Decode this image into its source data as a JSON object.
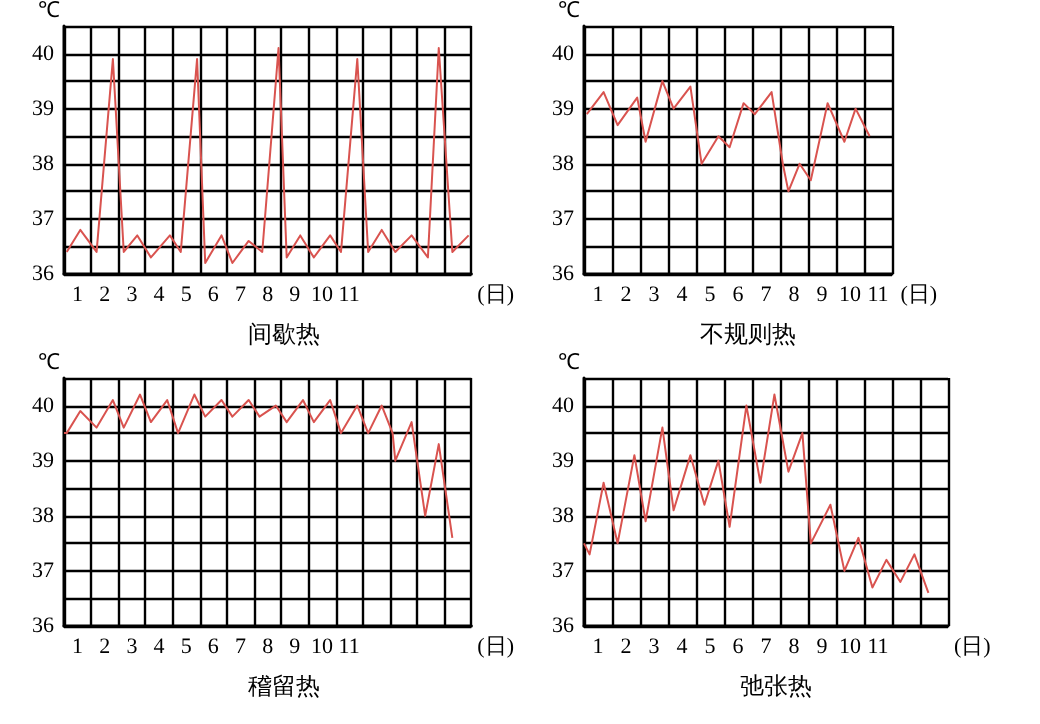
{
  "chart_data": [
    {
      "type": "line",
      "title": "间歇热",
      "xlabel": "(日)",
      "ylabel": "℃",
      "color": "#d9534f",
      "marker": "none",
      "grid": true,
      "xlim": [
        0,
        15
      ],
      "ylim": [
        36,
        40.5
      ],
      "xticks": [
        {
          "value": 0,
          "label": null
        },
        {
          "value": 0.5,
          "label": "1"
        },
        {
          "value": 1,
          "label": null
        },
        {
          "value": 1.5,
          "label": "2"
        },
        {
          "value": 2,
          "label": null
        },
        {
          "value": 2.5,
          "label": "3"
        },
        {
          "value": 3,
          "label": null
        },
        {
          "value": 3.5,
          "label": "4"
        },
        {
          "value": 4,
          "label": null
        },
        {
          "value": 4.5,
          "label": "5"
        },
        {
          "value": 5,
          "label": null
        },
        {
          "value": 5.5,
          "label": "6"
        },
        {
          "value": 6,
          "label": null
        },
        {
          "value": 6.5,
          "label": "7"
        },
        {
          "value": 7,
          "label": null
        },
        {
          "value": 7.5,
          "label": "8"
        },
        {
          "value": 8,
          "label": null
        },
        {
          "value": 8.5,
          "label": "9"
        },
        {
          "value": 9,
          "label": null
        },
        {
          "value": 9.5,
          "label": "10"
        },
        {
          "value": 10,
          "label": null
        },
        {
          "value": 10.5,
          "label": "11"
        },
        {
          "value": 11,
          "label": null
        },
        {
          "value": 12,
          "label": null
        },
        {
          "value": 13,
          "label": null
        },
        {
          "value": 14,
          "label": null
        },
        {
          "value": 15,
          "label": null
        }
      ],
      "yticks": [
        36,
        {
          "value": 36.5,
          "label": null
        },
        37,
        {
          "value": 37.5,
          "label": null
        },
        38,
        {
          "value": 38.5,
          "label": null
        },
        39,
        {
          "value": 39.5,
          "label": null
        },
        40,
        {
          "value": 40.5,
          "label": null
        }
      ],
      "x": [
        0.1,
        0.6,
        1.2,
        1.8,
        2.2,
        2.7,
        3.2,
        3.9,
        4.3,
        4.9,
        5.2,
        5.8,
        6.2,
        6.8,
        7.3,
        7.9,
        8.2,
        8.7,
        9.2,
        9.8,
        10.2,
        10.8,
        11.2,
        11.7,
        12.2,
        12.8,
        13.4,
        13.8,
        14.3,
        14.9
      ],
      "values": [
        36.4,
        36.8,
        36.4,
        39.9,
        36.4,
        36.7,
        36.3,
        36.7,
        36.4,
        39.9,
        36.2,
        36.7,
        36.2,
        36.6,
        36.4,
        40.1,
        36.3,
        36.7,
        36.3,
        36.7,
        36.4,
        39.9,
        36.4,
        36.8,
        36.4,
        36.7,
        36.3,
        40.1,
        36.4,
        36.7
      ]
    },
    {
      "type": "line",
      "title": "不规则热",
      "xlabel": "(日)",
      "ylabel": "℃",
      "color": "#d9534f",
      "marker": "none",
      "grid": true,
      "xlim": [
        0,
        11
      ],
      "ylim": [
        36,
        40.5
      ],
      "xticks": [
        {
          "value": 0,
          "label": null
        },
        {
          "value": 0.5,
          "label": "1"
        },
        {
          "value": 1,
          "label": null
        },
        {
          "value": 1.5,
          "label": "2"
        },
        {
          "value": 2,
          "label": null
        },
        {
          "value": 2.5,
          "label": "3"
        },
        {
          "value": 3,
          "label": null
        },
        {
          "value": 3.5,
          "label": "4"
        },
        {
          "value": 4,
          "label": null
        },
        {
          "value": 4.5,
          "label": "5"
        },
        {
          "value": 5,
          "label": null
        },
        {
          "value": 5.5,
          "label": "6"
        },
        {
          "value": 6,
          "label": null
        },
        {
          "value": 6.5,
          "label": "7"
        },
        {
          "value": 7,
          "label": null
        },
        {
          "value": 7.5,
          "label": "8"
        },
        {
          "value": 8,
          "label": null
        },
        {
          "value": 8.5,
          "label": "9"
        },
        {
          "value": 9,
          "label": null
        },
        {
          "value": 9.5,
          "label": "10"
        },
        {
          "value": 10,
          "label": null
        },
        {
          "value": 10.5,
          "label": "11"
        },
        {
          "value": 11,
          "label": null
        }
      ],
      "yticks": [
        36,
        {
          "value": 36.5,
          "label": null
        },
        37,
        {
          "value": 37.5,
          "label": null
        },
        38,
        {
          "value": 38.5,
          "label": null
        },
        39,
        {
          "value": 39.5,
          "label": null
        },
        40,
        {
          "value": 40.5,
          "label": null
        }
      ],
      "x": [
        0.1,
        0.7,
        1.2,
        1.9,
        2.2,
        2.8,
        3.2,
        3.8,
        4.2,
        4.8,
        5.2,
        5.7,
        6.1,
        6.7,
        7.1,
        7.3,
        7.7,
        8.1,
        8.7,
        9.3,
        9.7,
        10.2
      ],
      "values": [
        38.9,
        39.3,
        38.7,
        39.2,
        38.4,
        39.5,
        39.0,
        39.4,
        38.0,
        38.5,
        38.3,
        39.1,
        38.9,
        39.3,
        38.0,
        37.5,
        38.0,
        37.7,
        39.1,
        38.4,
        39.0,
        38.5
      ]
    },
    {
      "type": "line",
      "title": "稽留热",
      "xlabel": "(日)",
      "ylabel": "℃",
      "color": "#d9534f",
      "marker": "none",
      "grid": true,
      "xlim": [
        0,
        15
      ],
      "ylim": [
        36,
        40.5
      ],
      "xticks": [
        {
          "value": 0,
          "label": null
        },
        {
          "value": 0.5,
          "label": "1"
        },
        {
          "value": 1,
          "label": null
        },
        {
          "value": 1.5,
          "label": "2"
        },
        {
          "value": 2,
          "label": null
        },
        {
          "value": 2.5,
          "label": "3"
        },
        {
          "value": 3,
          "label": null
        },
        {
          "value": 3.5,
          "label": "4"
        },
        {
          "value": 4,
          "label": null
        },
        {
          "value": 4.5,
          "label": "5"
        },
        {
          "value": 5,
          "label": null
        },
        {
          "value": 5.5,
          "label": "6"
        },
        {
          "value": 6,
          "label": null
        },
        {
          "value": 6.5,
          "label": "7"
        },
        {
          "value": 7,
          "label": null
        },
        {
          "value": 7.5,
          "label": "8"
        },
        {
          "value": 8,
          "label": null
        },
        {
          "value": 8.5,
          "label": "9"
        },
        {
          "value": 9,
          "label": null
        },
        {
          "value": 9.5,
          "label": "10"
        },
        {
          "value": 10,
          "label": null
        },
        {
          "value": 10.5,
          "label": "11"
        },
        {
          "value": 11,
          "label": null
        },
        {
          "value": 12,
          "label": null
        },
        {
          "value": 13,
          "label": null
        },
        {
          "value": 14,
          "label": null
        },
        {
          "value": 15,
          "label": null
        }
      ],
      "yticks": [
        36,
        {
          "value": 36.5,
          "label": null
        },
        37,
        {
          "value": 37.5,
          "label": null
        },
        38,
        {
          "value": 38.5,
          "label": null
        },
        39,
        {
          "value": 39.5,
          "label": null
        },
        40,
        {
          "value": 40.5,
          "label": null
        }
      ],
      "x": [
        0,
        0.1,
        0.6,
        1.2,
        1.8,
        2.2,
        2.8,
        3.2,
        3.8,
        4.2,
        4.8,
        5.2,
        5.8,
        6.2,
        6.8,
        7.2,
        7.8,
        8.2,
        8.8,
        9.2,
        9.8,
        10.2,
        10.8,
        11.2,
        11.7,
        12.1,
        12.2,
        12.8,
        13.3,
        13.8,
        14.3
      ],
      "values": [
        39.5,
        39.5,
        39.9,
        39.6,
        40.1,
        39.6,
        40.2,
        39.7,
        40.1,
        39.5,
        40.2,
        39.8,
        40.1,
        39.8,
        40.1,
        39.8,
        40.0,
        39.7,
        40.1,
        39.7,
        40.1,
        39.5,
        40.0,
        39.5,
        40.0,
        39.5,
        39.0,
        39.7,
        38.0,
        39.3,
        37.6
      ]
    },
    {
      "type": "line",
      "title": "弛张热",
      "xlabel": "(日)",
      "ylabel": "℃",
      "color": "#d9534f",
      "marker": "none",
      "grid": true,
      "xlim": [
        0,
        13
      ],
      "ylim": [
        36,
        40.5
      ],
      "xticks": [
        {
          "value": 0,
          "label": null
        },
        {
          "value": 0.5,
          "label": "1"
        },
        {
          "value": 1,
          "label": null
        },
        {
          "value": 1.5,
          "label": "2"
        },
        {
          "value": 2,
          "label": null
        },
        {
          "value": 2.5,
          "label": "3"
        },
        {
          "value": 3,
          "label": null
        },
        {
          "value": 3.5,
          "label": "4"
        },
        {
          "value": 4,
          "label": null
        },
        {
          "value": 4.5,
          "label": "5"
        },
        {
          "value": 5,
          "label": null
        },
        {
          "value": 5.5,
          "label": "6"
        },
        {
          "value": 6,
          "label": null
        },
        {
          "value": 6.5,
          "label": "7"
        },
        {
          "value": 7,
          "label": null
        },
        {
          "value": 7.5,
          "label": "8"
        },
        {
          "value": 8,
          "label": null
        },
        {
          "value": 8.5,
          "label": "9"
        },
        {
          "value": 9,
          "label": null
        },
        {
          "value": 9.5,
          "label": "10"
        },
        {
          "value": 10,
          "label": null
        },
        {
          "value": 10.5,
          "label": "11"
        },
        {
          "value": 11,
          "label": null
        },
        {
          "value": 12,
          "label": null
        },
        {
          "value": 13,
          "label": null
        }
      ],
      "yticks": [
        36,
        {
          "value": 36.5,
          "label": null
        },
        37,
        {
          "value": 37.5,
          "label": null
        },
        38,
        {
          "value": 38.5,
          "label": null
        },
        39,
        {
          "value": 39.5,
          "label": null
        },
        40,
        {
          "value": 40.5,
          "label": null
        }
      ],
      "x": [
        0,
        0.2,
        0.7,
        1.2,
        1.8,
        2.2,
        2.8,
        3.2,
        3.8,
        4.3,
        4.8,
        5.2,
        5.8,
        6.3,
        6.8,
        7.3,
        7.8,
        8.1,
        8.8,
        9.3,
        9.8,
        10.3,
        10.8,
        11.3,
        11.8,
        12.3
      ],
      "values": [
        37.5,
        37.3,
        38.6,
        37.5,
        39.1,
        37.9,
        39.6,
        38.1,
        39.1,
        38.2,
        39.0,
        37.8,
        40.0,
        38.6,
        40.2,
        38.8,
        39.5,
        37.5,
        38.2,
        37.0,
        37.6,
        36.7,
        37.2,
        36.8,
        37.3,
        36.6
      ]
    }
  ]
}
